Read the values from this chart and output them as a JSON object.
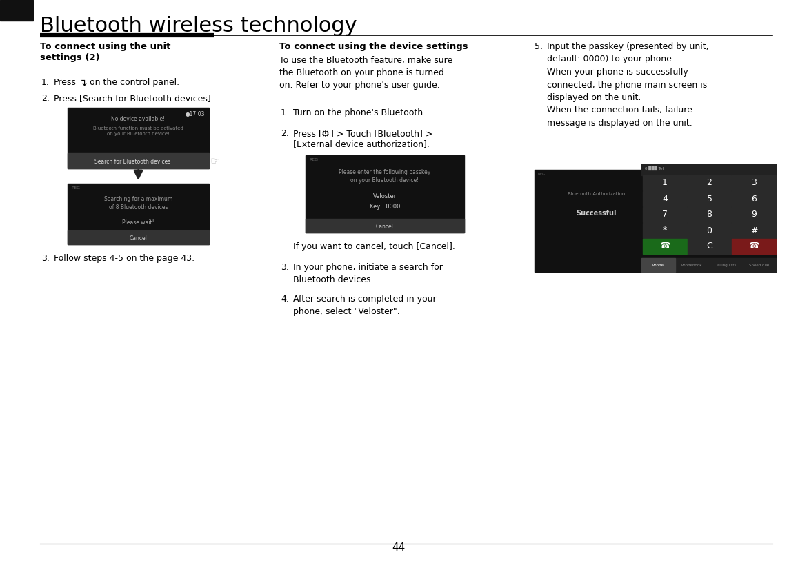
{
  "page_number": "44",
  "title": "Bluetooth wireless technology",
  "bg_color": "#ffffff",
  "text_color": "#000000",
  "col1_heading": "To connect using the unit\nsettings (2)",
  "col2_heading": "To connect using the device settings",
  "col2_intro": "To use the Bluetooth feature, make sure\nthe Bluetooth on your phone is turned\non. Refer to your phone's user guide.",
  "col3_item5_text": "Input the passkey (presented by unit,\ndefault: 0000) to your phone.\nWhen your phone is successfully\nconnected, the phone main screen is\ndisplayed on the unit.\nWhen the connection fails, failure\nmessage is displayed on the unit."
}
